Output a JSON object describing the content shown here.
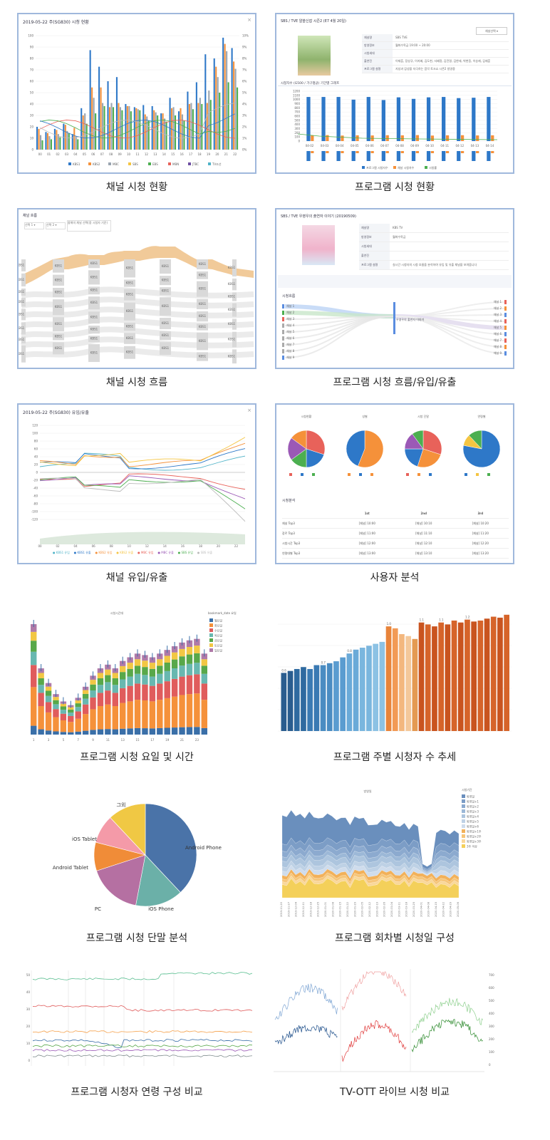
{
  "captions": [
    "채널 시청 현황",
    "프로그램 시청 현황",
    "채널 시청 흐름",
    "프로그램 시청 흐름/유입/유출",
    "채널 유입/유출",
    "사용자 분석",
    "프로그램 시청 요일 및 시간",
    "프로그램 주별 시청자 수 추세",
    "프로그램 시청 단말 분석",
    "프로그램 회차별 시청일 구성",
    "프로그램 시청자 연령 구성 비교",
    "TV-OTT 라이브 시청 비교"
  ],
  "colors": {
    "frame": "#9fb8dc",
    "blue": "#2e78c8",
    "orange": "#f5913a",
    "green": "#4caf50"
  },
  "panel1": {
    "title": "2019-05-22 주(SG830) 시청 현황",
    "chart_data": {
      "type": "bar",
      "categories": [
        "00",
        "01",
        "02",
        "03",
        "04",
        "05",
        "06",
        "07",
        "08",
        "09",
        "10",
        "11",
        "12",
        "13",
        "14",
        "15",
        "16",
        "17",
        "18",
        "19",
        "20",
        "21",
        "22"
      ],
      "series": [
        {
          "name": "KBS1",
          "values": [
            22,
            17,
            20,
            25,
            15,
            40,
            96,
            80,
            66,
            70,
            44,
            41,
            43,
            42,
            35,
            50,
            37,
            56,
            65,
            92,
            88,
            108,
            98
          ]
        },
        {
          "name": "KBS2",
          "values": [
            20,
            16,
            19,
            24,
            21,
            33,
            60,
            60,
            41,
            45,
            42,
            40,
            34,
            38,
            35,
            40,
            40,
            44,
            45,
            45,
            80,
            102,
            85
          ]
        },
        {
          "name": "MBC",
          "values": [
            14,
            13,
            15,
            18,
            13,
            35,
            50,
            45,
            45,
            41,
            42,
            39,
            32,
            36,
            30,
            41,
            34,
            45,
            50,
            57,
            70,
            95,
            78
          ]
        },
        {
          "name": "SBS",
          "values": [
            9,
            10,
            12,
            16,
            10,
            25,
            35,
            42,
            41,
            38,
            37,
            38,
            28,
            33,
            27,
            33,
            28,
            39,
            44,
            48,
            55,
            65,
            60
          ]
        }
      ],
      "legend": [
        "KBS1",
        "KBS2",
        "MBC",
        "SBS",
        "EBS",
        "MBN",
        "JTBC",
        "TV조선"
      ]
    }
  },
  "panel2": {
    "header": "SBS / TVE 알쓸신잡 시즌2 (E7 4월 20일)",
    "fields": [
      {
        "label": "채널명",
        "value": "SBS TVE"
      },
      {
        "label": "방영정보",
        "value": "월화수목금 19:00 ~ 20:00"
      },
      {
        "label": "시청세대",
        "value": ""
      },
      {
        "label": "출연진",
        "value": "이재훈, 장성규, 이지혜, 김도현, 서혜정, 김진명, 김한태, 박현웅, 이승재, 김재훈"
      },
      {
        "label": "프로그램 설명",
        "value": "지성과 감성을 자극하는 음악 토크쇼 시즌2 방영중"
      }
    ],
    "chart_title": "시청자수 (G500 / 가구평균) 기간별 그래프",
    "chart_data": {
      "type": "bar",
      "categories": [
        "04-02",
        "04-03",
        "04-04",
        "04-05",
        "04-06",
        "04-07",
        "04-08",
        "04-09",
        "04-10",
        "04-11",
        "04-12",
        "04-13",
        "04-14"
      ],
      "series": [
        {
          "name": "프로그램 시청자수",
          "values": [
            1150,
            1150,
            1150,
            1080,
            1150,
            1070,
            1140,
            1100,
            1140,
            1150,
            1120,
            1130,
            1150
          ]
        },
        {
          "name": "채널 시청자수",
          "values": [
            50,
            52,
            48,
            50,
            49,
            51,
            50,
            52,
            48,
            50,
            51,
            49,
            50
          ]
        }
      ],
      "legend": [
        "프로그램 시청자수",
        "채널 시청자수",
        "시청률"
      ]
    }
  },
  "panel3": {
    "title": "채널 흐름",
    "filters": [
      "선택 1 ▾",
      "선택 2 ▾",
      "올해의 채널 선택(중 시청자 기준)"
    ]
  },
  "panel4": {
    "header": "SBS / TVE 우영우의 출연자 이야기 (20190509)",
    "fields": [
      {
        "label": "채널명",
        "value": "KBS TV"
      },
      {
        "label": "방영정보",
        "value": "월화수목금"
      },
      {
        "label": "시청세대",
        "value": ""
      },
      {
        "label": "출연진",
        "value": ""
      },
      {
        "label": "프로그램 설명",
        "value": "실시간 시청자의 시청 흐름을 분석하여 유입 및 유출 채널을 보여줍니다"
      }
    ],
    "tabs": [
      "< 이전",
      "현재",
      "다음 프로그램 >"
    ],
    "flow_title": "시청흐름",
    "center": "우영우의 출연자 이야기"
  },
  "panel5": {
    "title": "2019-05-22 주(SG830) 유입/유출",
    "legend": [
      "KBS1 유입",
      "KBS1 유출",
      "KBS2 유입",
      "KBS2 유출",
      "MBC 유입",
      "MBC 유출",
      "SBS 유입",
      "SBS 유출"
    ]
  },
  "panel6": {
    "pies": [
      {
        "title": "시청현황",
        "chart_data": {
          "type": "pie",
          "values": [
            30,
            20,
            15,
            20,
            15
          ]
        }
      },
      {
        "title": "성별",
        "chart_data": {
          "type": "pie",
          "values": [
            56,
            44
          ]
        }
      },
      {
        "title": "시청 단말",
        "chart_data": {
          "type": "pie",
          "values": [
            30,
            25,
            20,
            15,
            10
          ]
        }
      },
      {
        "title": "연령별",
        "chart_data": {
          "type": "pie",
          "values": [
            78,
            10,
            12
          ]
        }
      }
    ],
    "table_title": "시청분석",
    "headers": [
      "",
      "1st",
      "2nd",
      "3rd"
    ],
    "rows": [
      [
        "채널 Top3",
        "[채널] 10:00",
        "[채널] 10:10",
        "[채널] 10:20"
      ],
      [
        "장르 Top3",
        "[채널] 11:00",
        "[채널] 11:10",
        "[채널] 11:20"
      ],
      [
        "시청시간 Top3",
        "[채널] 12:00",
        "[채널] 12:10",
        "[채널] 12:20"
      ],
      [
        "연령대별 Top3",
        "[채널] 13:00",
        "[채널] 13:10",
        "[채널] 13:20"
      ]
    ]
  },
  "panel7": {
    "title": "시청시간대",
    "legend_title": "bookmark_date 요일",
    "legend": [
      "월요일",
      "화요일",
      "수요일",
      "목요일",
      "금요일",
      "토요일",
      "일요일"
    ],
    "xticks": [
      "1",
      "3",
      "5",
      "7",
      "9",
      "11",
      "13",
      "15",
      "17",
      "19",
      "21",
      "23"
    ],
    "chart_data": {
      "type": "bar",
      "categories": [
        "0",
        "1",
        "2",
        "3",
        "4",
        "5",
        "6",
        "7",
        "8",
        "9",
        "10",
        "11",
        "12",
        "13",
        "14",
        "15",
        "16",
        "17",
        "18",
        "19",
        "20",
        "21",
        "22",
        "23"
      ],
      "values": [
        150,
        90,
        70,
        55,
        45,
        40,
        50,
        65,
        80,
        90,
        95,
        90,
        100,
        105,
        110,
        108,
        105,
        110,
        115,
        120,
        125,
        128,
        130,
        110
      ]
    }
  },
  "panel8": {
    "chart_data": {
      "type": "bar",
      "values": [
        60,
        62,
        64,
        66,
        64,
        68,
        68,
        70,
        72,
        76,
        80,
        84,
        86,
        88,
        90,
        92,
        108,
        106,
        100,
        98,
        95,
        112,
        110,
        108,
        112,
        110,
        114,
        112,
        115,
        113,
        114,
        116,
        118,
        117,
        120
      ],
      "labels": [
        "0.6",
        "",
        "",
        "",
        "",
        "",
        "0.7",
        "",
        "",
        "",
        "0.8",
        "",
        "",
        "",
        "",
        "",
        "1.0",
        "",
        "",
        "",
        "",
        "1.1",
        "",
        "",
        "1.1",
        "",
        "",
        "",
        "1.2",
        "",
        "",
        "",
        "",
        "",
        ""
      ]
    }
  },
  "panel9": {
    "chart_data": {
      "type": "pie",
      "labels": [
        "Android Phone",
        "iOS Phone",
        "PC",
        "Android Tablet",
        "iOS Tablet",
        "그외"
      ],
      "values": [
        38,
        15,
        17,
        9,
        9,
        12
      ]
    }
  },
  "panel10": {
    "title": "방영일",
    "legend_title": "시청기간",
    "legend": [
      "방영일",
      "방영일+1",
      "방영일+2",
      "방영일+3",
      "방영일+4",
      "방영일+5",
      "방영일+6",
      "방영일+1주",
      "방영일+2주",
      "방영일+3주",
      "3주 이상"
    ],
    "dates": [
      "2019-11-20",
      "2019-11-27",
      "2019-12-04",
      "2019-12-11",
      "2019-12-18",
      "2019-12-25",
      "2020-01-01",
      "2020-01-08",
      "2020-01-15",
      "2020-01-22",
      "2020-01-29",
      "2020-02-05",
      "2020-02-12",
      "2020-02-19",
      "2020-02-26",
      "2020-03-04",
      "2020-03-11",
      "2020-03-18",
      "2020-03-25",
      "2020-04-01",
      "2020-04-08",
      "2020-04-15",
      "2020-04-22",
      "2020-04-29",
      "2020-05-06"
    ]
  },
  "panel11": {},
  "panel12": {}
}
